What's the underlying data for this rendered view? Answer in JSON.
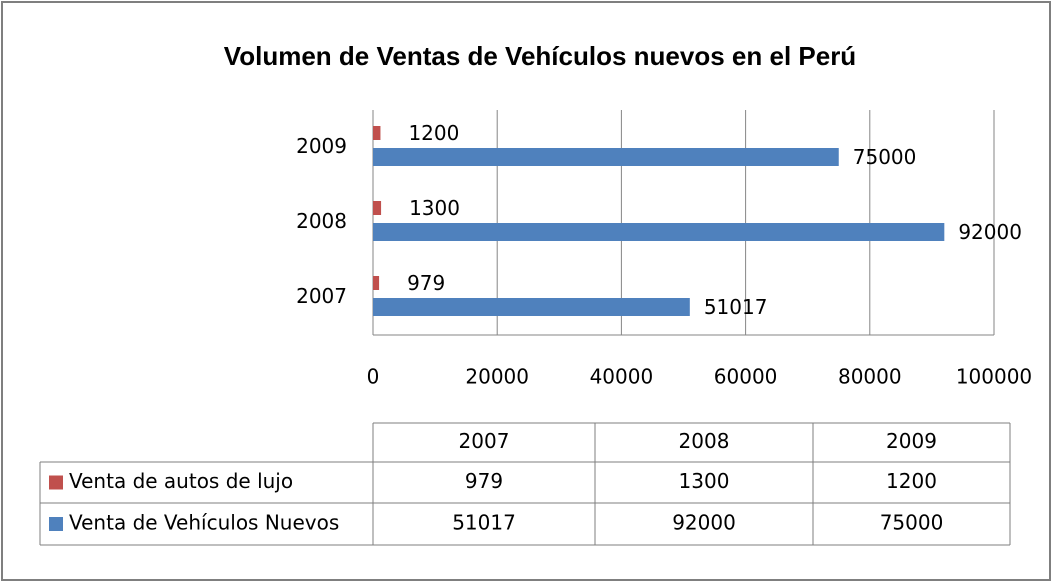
{
  "chart_data": {
    "type": "bar",
    "orientation": "horizontal",
    "title": "Volumen de Ventas de Vehículos nuevos en el Perú",
    "categories": [
      "2007",
      "2008",
      "2009"
    ],
    "series": [
      {
        "name": "Venta de autos de lujo",
        "color": "#c0504d",
        "values": [
          979,
          1300,
          1200
        ]
      },
      {
        "name": "Venta de Vehículos Nuevos",
        "color": "#4f81bd",
        "values": [
          51017,
          92000,
          75000
        ]
      }
    ],
    "xlim": [
      0,
      100000
    ],
    "xticks": [
      0,
      20000,
      40000,
      60000,
      80000,
      100000
    ],
    "grid": true,
    "data_table": true
  }
}
